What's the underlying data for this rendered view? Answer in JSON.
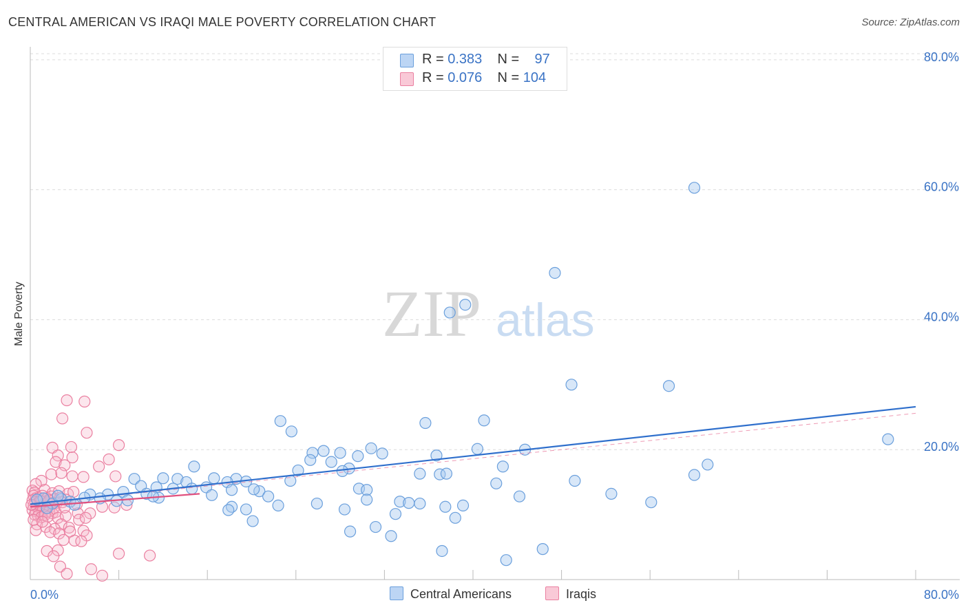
{
  "header": {
    "title": "CENTRAL AMERICAN VS IRAQI MALE POVERTY CORRELATION CHART",
    "source": "Source: ZipAtlas.com"
  },
  "colors": {
    "blue_fill": "#a9c9f0",
    "blue_stroke": "#6a9fdc",
    "blue_line": "#2f6fcc",
    "pink_fill": "#f7b6ca",
    "pink_stroke": "#ea7fa0",
    "pink_line": "#e0507e",
    "axis_text": "#3a73c5"
  },
  "watermark": {
    "zip": "ZIP",
    "atlas": "atlas"
  },
  "legend": {
    "rows": [
      {
        "r_label": "R =",
        "r_value": "0.383",
        "n_label": "N =",
        "n_value": "97"
      },
      {
        "r_label": "R =",
        "r_value": "0.076",
        "n_label": "N =",
        "n_value": "104"
      }
    ]
  },
  "bottom_legend": {
    "items": [
      "Central Americans",
      "Iraqis"
    ]
  },
  "chart_data": {
    "type": "scatter",
    "title": "CENTRAL AMERICAN VS IRAQI MALE POVERTY CORRELATION CHART",
    "xlabel": "",
    "ylabel": "Male Poverty",
    "xlim": [
      0,
      80
    ],
    "ylim": [
      0,
      82
    ],
    "x_tick_labels": [
      "0.0%",
      "80.0%"
    ],
    "y_ticks": [
      20,
      40,
      60,
      80
    ],
    "y_tick_labels": [
      "20.0%",
      "40.0%",
      "60.0%",
      "80.0%"
    ],
    "grid": true,
    "series": [
      {
        "name": "Central Americans",
        "r": 0.383,
        "n": 97,
        "trend": {
          "x": [
            0,
            80
          ],
          "y": [
            11.6,
            26.6
          ]
        },
        "trend_dashed": {
          "x": [
            0,
            80
          ],
          "y": [
            11.6,
            25.6
          ]
        },
        "points": [
          [
            60.0,
            60.3
          ],
          [
            47.4,
            47.2
          ],
          [
            39.3,
            42.3
          ],
          [
            37.9,
            41.1
          ],
          [
            48.9,
            30.0
          ],
          [
            57.7,
            29.8
          ],
          [
            77.5,
            21.6
          ],
          [
            41.0,
            24.5
          ],
          [
            35.7,
            24.1
          ],
          [
            22.6,
            24.4
          ],
          [
            23.6,
            22.8
          ],
          [
            28.0,
            19.5
          ],
          [
            26.5,
            19.8
          ],
          [
            25.5,
            19.5
          ],
          [
            27.2,
            18.1
          ],
          [
            29.6,
            19.0
          ],
          [
            30.8,
            20.2
          ],
          [
            31.8,
            19.4
          ],
          [
            36.7,
            19.1
          ],
          [
            40.4,
            20.1
          ],
          [
            44.7,
            20.0
          ],
          [
            61.2,
            17.7
          ],
          [
            60.0,
            16.1
          ],
          [
            42.7,
            17.4
          ],
          [
            35.2,
            16.3
          ],
          [
            37.0,
            16.2
          ],
          [
            37.6,
            16.3
          ],
          [
            28.8,
            17.1
          ],
          [
            28.2,
            16.7
          ],
          [
            23.5,
            15.2
          ],
          [
            24.2,
            16.8
          ],
          [
            25.3,
            18.4
          ],
          [
            14.8,
            17.4
          ],
          [
            16.6,
            15.6
          ],
          [
            18.6,
            15.5
          ],
          [
            19.5,
            15.1
          ],
          [
            17.8,
            15.0
          ],
          [
            12.0,
            15.6
          ],
          [
            13.3,
            15.5
          ],
          [
            14.1,
            15.0
          ],
          [
            9.4,
            15.5
          ],
          [
            10.0,
            14.4
          ],
          [
            11.4,
            14.2
          ],
          [
            12.9,
            14.0
          ],
          [
            14.6,
            14.0
          ],
          [
            15.9,
            14.2
          ],
          [
            16.4,
            13.0
          ],
          [
            18.2,
            13.8
          ],
          [
            20.7,
            13.6
          ],
          [
            20.2,
            13.9
          ],
          [
            29.7,
            14.0
          ],
          [
            30.4,
            13.8
          ],
          [
            42.1,
            14.8
          ],
          [
            49.2,
            15.2
          ],
          [
            52.5,
            13.2
          ],
          [
            44.2,
            12.8
          ],
          [
            8.4,
            13.5
          ],
          [
            10.5,
            13.2
          ],
          [
            11.6,
            12.6
          ],
          [
            11.1,
            12.8
          ],
          [
            7.0,
            13.1
          ],
          [
            5.4,
            13.1
          ],
          [
            4.9,
            12.6
          ],
          [
            6.3,
            12.5
          ],
          [
            7.8,
            12.1
          ],
          [
            8.8,
            12.2
          ],
          [
            2.8,
            12.4
          ],
          [
            3.6,
            12.0
          ],
          [
            1.2,
            12.5
          ],
          [
            2.0,
            11.7
          ],
          [
            21.5,
            12.8
          ],
          [
            30.4,
            12.3
          ],
          [
            33.4,
            12.0
          ],
          [
            34.2,
            11.8
          ],
          [
            35.2,
            11.7
          ],
          [
            18.2,
            11.2
          ],
          [
            22.4,
            11.4
          ],
          [
            25.9,
            11.7
          ],
          [
            39.1,
            11.4
          ],
          [
            37.5,
            11.2
          ],
          [
            56.1,
            11.9
          ],
          [
            17.9,
            10.7
          ],
          [
            19.5,
            10.8
          ],
          [
            28.4,
            10.8
          ],
          [
            33.0,
            10.1
          ],
          [
            38.4,
            9.5
          ],
          [
            20.1,
            9.0
          ],
          [
            31.2,
            8.1
          ],
          [
            28.9,
            7.4
          ],
          [
            32.6,
            6.7
          ],
          [
            37.2,
            4.4
          ],
          [
            43.0,
            3.0
          ],
          [
            46.3,
            4.7
          ],
          [
            1.5,
            11.0
          ],
          [
            0.6,
            12.3
          ],
          [
            4.0,
            11.5
          ],
          [
            2.5,
            12.9
          ]
        ]
      },
      {
        "name": "Iraqis",
        "r": 0.076,
        "n": 104,
        "trend": {
          "x": [
            0,
            15.3
          ],
          "y": [
            11.2,
            13.2
          ]
        },
        "points": [
          [
            4.9,
            27.4
          ],
          [
            3.3,
            27.6
          ],
          [
            2.9,
            24.8
          ],
          [
            5.1,
            22.6
          ],
          [
            8.0,
            20.7
          ],
          [
            3.7,
            20.4
          ],
          [
            2.0,
            20.3
          ],
          [
            2.5,
            19.1
          ],
          [
            3.8,
            18.8
          ],
          [
            7.1,
            18.5
          ],
          [
            2.3,
            18.1
          ],
          [
            3.1,
            17.6
          ],
          [
            6.2,
            17.4
          ],
          [
            1.9,
            16.2
          ],
          [
            2.8,
            16.4
          ],
          [
            4.8,
            15.8
          ],
          [
            3.8,
            15.9
          ],
          [
            7.7,
            15.9
          ],
          [
            1.0,
            15.2
          ],
          [
            0.5,
            14.7
          ],
          [
            0.2,
            13.7
          ],
          [
            0.4,
            13.4
          ],
          [
            1.3,
            13.8
          ],
          [
            2.0,
            13.3
          ],
          [
            2.6,
            13.6
          ],
          [
            3.4,
            13.2
          ],
          [
            3.9,
            13.5
          ],
          [
            0.3,
            12.9
          ],
          [
            0.5,
            12.5
          ],
          [
            0.8,
            12.6
          ],
          [
            1.1,
            12.9
          ],
          [
            1.5,
            12.5
          ],
          [
            1.9,
            12.8
          ],
          [
            2.2,
            12.4
          ],
          [
            2.7,
            12.6
          ],
          [
            3.2,
            12.3
          ],
          [
            0.2,
            12.2
          ],
          [
            0.4,
            11.9
          ],
          [
            0.7,
            11.8
          ],
          [
            1.0,
            12.0
          ],
          [
            1.3,
            11.7
          ],
          [
            1.6,
            11.9
          ],
          [
            2.0,
            11.6
          ],
          [
            2.4,
            11.8
          ],
          [
            0.3,
            11.4
          ],
          [
            0.6,
            11.2
          ],
          [
            0.9,
            11.1
          ],
          [
            1.2,
            11.3
          ],
          [
            1.5,
            11.0
          ],
          [
            1.8,
            11.2
          ],
          [
            2.1,
            10.9
          ],
          [
            0.2,
            10.7
          ],
          [
            0.5,
            10.5
          ],
          [
            0.8,
            10.4
          ],
          [
            1.1,
            10.6
          ],
          [
            1.4,
            10.3
          ],
          [
            1.7,
            10.5
          ],
          [
            2.0,
            10.2
          ],
          [
            2.3,
            10.4
          ],
          [
            0.4,
            10.0
          ],
          [
            0.7,
            9.8
          ],
          [
            1.0,
            9.6
          ],
          [
            1.3,
            9.9
          ],
          [
            1.6,
            9.7
          ],
          [
            2.5,
            9.5
          ],
          [
            3.2,
            9.8
          ],
          [
            4.3,
            10.2
          ],
          [
            4.4,
            9.2
          ],
          [
            5.4,
            10.2
          ],
          [
            6.5,
            11.2
          ],
          [
            7.6,
            11.1
          ],
          [
            8.7,
            11.5
          ],
          [
            5.0,
            9.5
          ],
          [
            2.8,
            8.5
          ],
          [
            0.6,
            8.5
          ],
          [
            1.4,
            8.1
          ],
          [
            2.2,
            7.8
          ],
          [
            3.5,
            8.0
          ],
          [
            0.5,
            7.6
          ],
          [
            1.8,
            7.3
          ],
          [
            2.6,
            7.1
          ],
          [
            3.6,
            7.4
          ],
          [
            4.8,
            7.5
          ],
          [
            5.1,
            6.8
          ],
          [
            3.0,
            6.1
          ],
          [
            4.0,
            6.0
          ],
          [
            4.6,
            5.9
          ],
          [
            1.5,
            4.4
          ],
          [
            2.5,
            4.5
          ],
          [
            8.0,
            4.0
          ],
          [
            10.8,
            3.7
          ],
          [
            2.1,
            3.6
          ],
          [
            2.7,
            2.0
          ],
          [
            5.5,
            1.6
          ],
          [
            3.3,
            0.9
          ],
          [
            6.5,
            0.6
          ],
          [
            0.9,
            12.1
          ],
          [
            1.7,
            12.2
          ],
          [
            2.9,
            11.9
          ],
          [
            0.1,
            11.5
          ],
          [
            3.1,
            11.1
          ],
          [
            4.2,
            11.6
          ],
          [
            0.3,
            9.2
          ],
          [
            1.1,
            8.9
          ]
        ]
      }
    ]
  }
}
